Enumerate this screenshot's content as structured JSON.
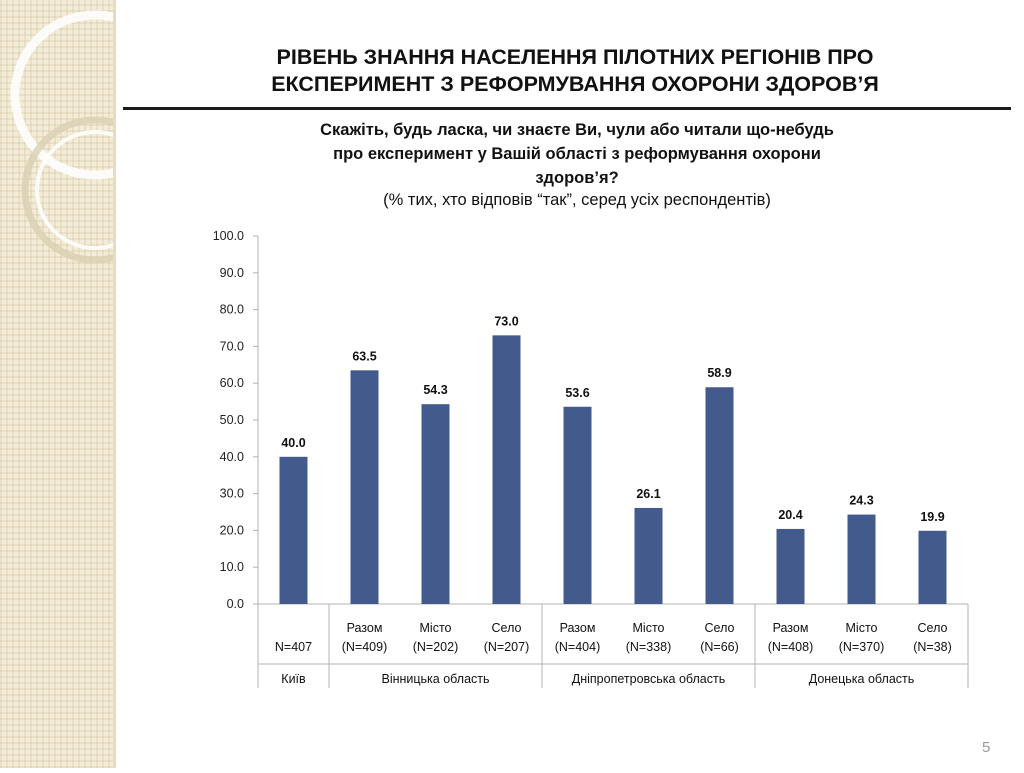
{
  "slide": {
    "title_line1": "РІВЕНЬ ЗНАННЯ НАСЕЛЕННЯ ПІЛОТНИХ РЕГІОНІВ ПРО",
    "title_line2": "ЕКСПЕРИМЕНТ З РЕФОРМУВАННЯ ОХОРОНИ ЗДОРОВ’Я",
    "question_line1": "Скажіть, будь ласка, чи знаєте Ви, чули або читали що-небудь",
    "question_line2": "про експеримент у Вашій області з реформування охорони",
    "question_line3": "здоров’я?",
    "note": "(% тих, хто відповів “так”, серед усіх респондентів)",
    "page_number": "5"
  },
  "colors": {
    "bar": "#435a8c",
    "axis": "#b3b3b3",
    "side_panel": "#f3ecd9"
  },
  "chart_data": {
    "type": "bar",
    "ylim": [
      0,
      100
    ],
    "yticks": [
      "0.0",
      "10.0",
      "20.0",
      "30.0",
      "40.0",
      "50.0",
      "60.0",
      "70.0",
      "80.0",
      "90.0",
      "100.0"
    ],
    "grid": false,
    "categories": [
      {
        "label": "",
        "n": "N=407",
        "group": "Київ",
        "value": 40.0,
        "value_label": "40.0"
      },
      {
        "label": "Разом",
        "n": "(N=409)",
        "group": "Вінницька область",
        "value": 63.5,
        "value_label": "63.5"
      },
      {
        "label": "Місто",
        "n": "(N=202)",
        "group": "Вінницька область",
        "value": 54.3,
        "value_label": "54.3"
      },
      {
        "label": "Село",
        "n": "(N=207)",
        "group": "Вінницька область",
        "value": 73.0,
        "value_label": "73.0"
      },
      {
        "label": "Разом",
        "n": "(N=404)",
        "group": "Дніпропетровська область",
        "value": 53.6,
        "value_label": "53.6"
      },
      {
        "label": "Місто",
        "n": "(N=338)",
        "group": "Дніпропетровська область",
        "value": 26.1,
        "value_label": "26.1"
      },
      {
        "label": "Село",
        "n": "(N=66)",
        "group": "Дніпропетровська область",
        "value": 58.9,
        "value_label": "58.9"
      },
      {
        "label": "Разом",
        "n": "(N=408)",
        "group": "Донецька область",
        "value": 20.4,
        "value_label": "20.4"
      },
      {
        "label": "Місто",
        "n": "(N=370)",
        "group": "Донецька область",
        "value": 24.3,
        "value_label": "24.3"
      },
      {
        "label": "Село",
        "n": "(N=38)",
        "group": "Донецька область",
        "value": 19.9,
        "value_label": "19.9"
      }
    ],
    "groups": [
      "Київ",
      "Вінницька область",
      "Дніпропетровська область",
      "Донецька область"
    ]
  }
}
